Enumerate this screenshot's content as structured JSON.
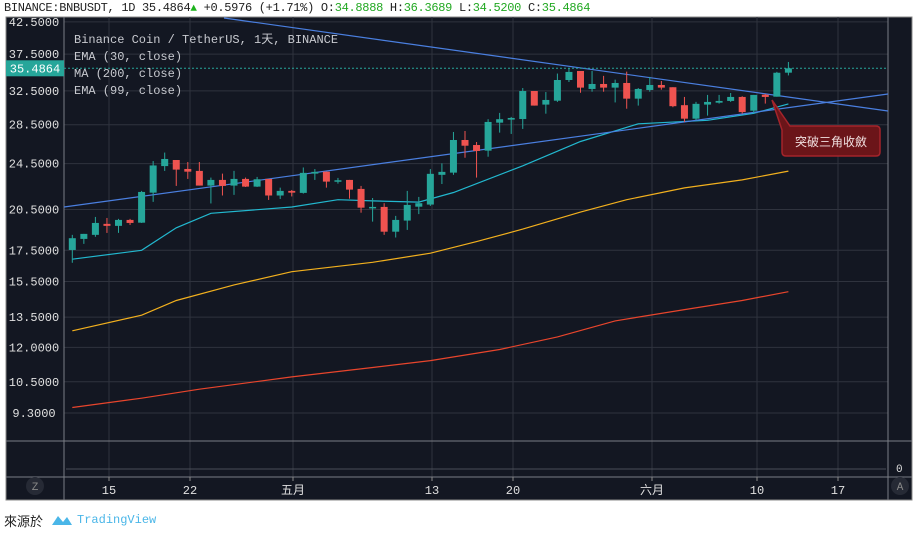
{
  "header": {
    "symbol": "BINANCE:BNBUSDT, 1D",
    "last": "35.4864",
    "change": "+0.5976 (+1.71%)",
    "o_label": "O:",
    "o": "34.8888",
    "h_label": "H:",
    "h": "36.3689",
    "l_label": "L:",
    "l": "34.5200",
    "c_label": "C:",
    "c": "35.4864",
    "up_icon": "triangle-up-icon"
  },
  "legend": {
    "title": "Binance Coin / TetherUS, 1天, BINANCE",
    "ema30": "EMA (30, close)",
    "ma200": "MA (200, close)",
    "ema99": "EMA (99, close)"
  },
  "price_axis": {
    "ticks": [
      "42.5000",
      "37.5000",
      "32.5000",
      "28.5000",
      "24.5000",
      "20.5000",
      "17.5000",
      "15.5000",
      "13.5000",
      "12.0000",
      "10.5000",
      "9.3000"
    ],
    "current": "35.4864"
  },
  "volume_axis": {
    "zero": "0"
  },
  "time_axis": {
    "labels": [
      "15",
      "22",
      "五月",
      "13",
      "20",
      "六月",
      "10",
      "17"
    ],
    "z_button": "Z",
    "a_button": "A"
  },
  "annotation": {
    "text": "突破三角收斂"
  },
  "colors": {
    "background": "#131722",
    "up": "#26a69a",
    "down": "#ef5350",
    "ema30": "#22b8cf",
    "ma200": "#f2b01e",
    "ema99": "#e8452c",
    "trendline": "#4a7fe0",
    "annotation_bg": "#6b1519",
    "annotation_border": "#a5242b"
  },
  "chart_data": {
    "type": "candlestick",
    "scale": "log",
    "ohlc": [
      [
        17.52,
        18.58,
        16.67,
        18.34
      ],
      [
        18.29,
        18.65,
        17.94,
        18.65
      ],
      [
        18.58,
        19.92,
        18.44,
        19.46
      ],
      [
        19.39,
        19.84,
        18.72,
        19.24
      ],
      [
        19.24,
        19.77,
        18.72,
        19.69
      ],
      [
        19.69,
        19.77,
        19.31,
        19.46
      ],
      [
        19.48,
        22.04,
        19.46,
        21.95
      ],
      [
        21.89,
        24.75,
        21.12,
        24.33
      ],
      [
        24.27,
        25.58,
        23.82,
        24.95
      ],
      [
        24.85,
        24.85,
        22.47,
        23.94
      ],
      [
        24.0,
        24.66,
        23.09,
        23.75
      ],
      [
        23.82,
        24.66,
        22.5,
        22.5
      ],
      [
        22.5,
        23.21,
        20.99,
        23.0
      ],
      [
        23.0,
        23.57,
        21.65,
        22.47
      ],
      [
        22.5,
        23.82,
        21.7,
        23.09
      ],
      [
        23.09,
        23.21,
        22.38,
        22.41
      ],
      [
        22.41,
        23.27,
        22.38,
        23.06
      ],
      [
        23.09,
        23.09,
        21.28,
        21.65
      ],
      [
        21.65,
        22.32,
        21.36,
        22.04
      ],
      [
        22.04,
        22.12,
        21.57,
        21.89
      ],
      [
        21.87,
        24.14,
        21.81,
        23.64
      ],
      [
        23.57,
        23.99,
        23.0,
        23.73
      ],
      [
        23.75,
        23.75,
        22.32,
        22.85
      ],
      [
        22.89,
        23.18,
        22.67,
        22.97
      ],
      [
        23.0,
        23.0,
        21.39,
        22.15
      ],
      [
        22.21,
        22.47,
        20.25,
        20.65
      ],
      [
        20.65,
        21.44,
        19.56,
        20.71
      ],
      [
        20.71,
        21.01,
        18.58,
        18.81
      ],
      [
        18.81,
        20.0,
        18.39,
        19.69
      ],
      [
        19.64,
        22.04,
        18.94,
        20.87
      ],
      [
        20.73,
        21.53,
        20.14,
        21.01
      ],
      [
        20.9,
        23.99,
        20.79,
        23.55
      ],
      [
        23.46,
        24.53,
        22.64,
        23.73
      ],
      [
        23.66,
        27.71,
        23.46,
        26.86
      ],
      [
        26.86,
        27.82,
        25.07,
        26.27
      ],
      [
        26.34,
        26.65,
        23.21,
        25.74
      ],
      [
        25.77,
        29.12,
        25.17,
        28.81
      ],
      [
        28.73,
        29.84,
        27.64,
        29.12
      ],
      [
        29.07,
        29.38,
        27.5,
        29.26
      ],
      [
        29.14,
        32.87,
        28.04,
        32.49
      ],
      [
        32.49,
        32.49,
        30.7,
        30.7
      ],
      [
        30.82,
        32.36,
        29.75,
        31.38
      ],
      [
        31.29,
        34.77,
        31.14,
        33.91
      ],
      [
        33.91,
        35.5,
        33.65,
        34.99
      ],
      [
        35.12,
        35.12,
        32.27,
        32.92
      ],
      [
        32.75,
        35.12,
        32.4,
        33.39
      ],
      [
        33.39,
        34.46,
        32.4,
        32.92
      ],
      [
        32.92,
        33.96,
        31.08,
        33.52
      ],
      [
        33.52,
        35.03,
        30.33,
        31.54
      ],
      [
        31.54,
        32.87,
        30.7,
        32.75
      ],
      [
        32.62,
        34.32,
        32.4,
        33.26
      ],
      [
        33.26,
        33.78,
        32.66,
        32.92
      ],
      [
        32.97,
        32.97,
        30.51,
        30.63
      ],
      [
        30.75,
        31.75,
        28.81,
        29.18
      ],
      [
        29.18,
        31.14,
        29.0,
        30.91
      ],
      [
        30.82,
        32.0,
        29.53,
        31.14
      ],
      [
        31.05,
        32.0,
        30.94,
        31.26
      ],
      [
        31.26,
        32.24,
        31.14,
        31.75
      ],
      [
        31.75,
        31.84,
        29.75,
        29.93
      ],
      [
        30.1,
        32.0,
        29.82,
        32.0
      ],
      [
        32.03,
        32.12,
        30.94,
        31.75
      ],
      [
        31.78,
        35.0,
        31.78,
        34.88
      ],
      [
        34.8888,
        36.3689,
        34.52,
        35.4864
      ]
    ],
    "ema30": [
      [
        1,
        16.9
      ],
      [
        7,
        17.5
      ],
      [
        10,
        19.1
      ],
      [
        13,
        20.2
      ],
      [
        20,
        20.7
      ],
      [
        24,
        21.3
      ],
      [
        27,
        21.2
      ],
      [
        31,
        21.1
      ],
      [
        34,
        21.9
      ],
      [
        40,
        24.3
      ],
      [
        45,
        26.7
      ],
      [
        50,
        28.6
      ],
      [
        56,
        29.0
      ],
      [
        60,
        29.8
      ],
      [
        63,
        30.9
      ]
    ],
    "ma200": [
      [
        1,
        12.8
      ],
      [
        7,
        13.6
      ],
      [
        10,
        14.4
      ],
      [
        15,
        15.3
      ],
      [
        20,
        16.1
      ],
      [
        27,
        16.7
      ],
      [
        32,
        17.3
      ],
      [
        36,
        18.1
      ],
      [
        40,
        19.0
      ],
      [
        45,
        20.3
      ],
      [
        49,
        21.3
      ],
      [
        54,
        22.3
      ],
      [
        59,
        23.0
      ],
      [
        63,
        23.8
      ]
    ],
    "ema99": [
      [
        1,
        9.5
      ],
      [
        7,
        9.85
      ],
      [
        12,
        10.2
      ],
      [
        20,
        10.7
      ],
      [
        27,
        11.1
      ],
      [
        32,
        11.4
      ],
      [
        38,
        11.9
      ],
      [
        43,
        12.5
      ],
      [
        48,
        13.3
      ],
      [
        54,
        13.9
      ],
      [
        59,
        14.4
      ],
      [
        63,
        14.9
      ]
    ]
  }
}
